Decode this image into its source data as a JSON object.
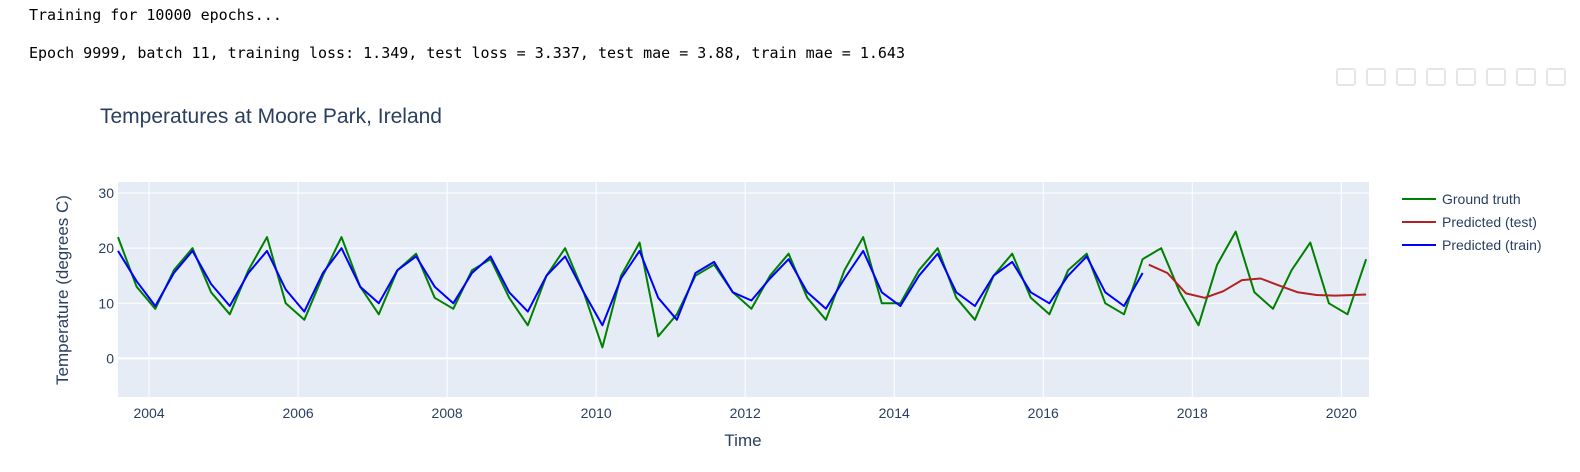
{
  "console": {
    "line1": "Training for 10000 epochs...",
    "line2": "Epoch 9999, batch 11, training loss: 1.349, test loss = 3.337, test mae = 3.88, train mae = 1.643"
  },
  "chart_data": {
    "type": "line",
    "title": "Temperatures at Moore Park, Ireland",
    "xlabel": "Time",
    "ylabel": "Temperature (degrees C)",
    "xlim": [
      "2003-08-01",
      "2020-05-15"
    ],
    "ylim": [
      -7,
      32
    ],
    "x_ticks": [
      "2004",
      "2006",
      "2008",
      "2010",
      "2012",
      "2014",
      "2016",
      "2018",
      "2020"
    ],
    "y_ticks": [
      0,
      10,
      20,
      30
    ],
    "grid": true,
    "legend_position": "right",
    "colors": {
      "ground_truth": "#008000",
      "predicted_test": "#b22222",
      "predicted_train": "#0000ff",
      "plot_bg": "#e5ecf6"
    },
    "series": [
      {
        "name": "Ground truth",
        "x": [
          "2003-08",
          "2003-11",
          "2004-02",
          "2004-05",
          "2004-08",
          "2004-11",
          "2005-02",
          "2005-05",
          "2005-08",
          "2005-11",
          "2006-02",
          "2006-05",
          "2006-08",
          "2006-11",
          "2007-02",
          "2007-05",
          "2007-08",
          "2007-11",
          "2008-02",
          "2008-05",
          "2008-08",
          "2008-11",
          "2009-02",
          "2009-05",
          "2009-08",
          "2009-11",
          "2010-02",
          "2010-05",
          "2010-08",
          "2010-11",
          "2011-02",
          "2011-05",
          "2011-08",
          "2011-11",
          "2012-02",
          "2012-05",
          "2012-08",
          "2012-11",
          "2013-02",
          "2013-05",
          "2013-08",
          "2013-11",
          "2014-02",
          "2014-05",
          "2014-08",
          "2014-11",
          "2015-02",
          "2015-05",
          "2015-08",
          "2015-11",
          "2016-02",
          "2016-05",
          "2016-08",
          "2016-11",
          "2017-02",
          "2017-05",
          "2017-08",
          "2017-11",
          "2018-02",
          "2018-05",
          "2018-08",
          "2018-11",
          "2019-02",
          "2019-05",
          "2019-08",
          "2019-11",
          "2020-02",
          "2020-05"
        ],
        "values": [
          22,
          13,
          9,
          16,
          20,
          12,
          8,
          16,
          22,
          10,
          7,
          15,
          22,
          13,
          8,
          16,
          19,
          11,
          9,
          16,
          18,
          11,
          6,
          15,
          20,
          12,
          2,
          15,
          21,
          4,
          8,
          15,
          17,
          12,
          9,
          15,
          19,
          11,
          7,
          16,
          22,
          10,
          10,
          16,
          20,
          11,
          7,
          15,
          19,
          11,
          8,
          16,
          19,
          10,
          8,
          18,
          20,
          12,
          6,
          17,
          23,
          12,
          9,
          16,
          21,
          10,
          8,
          18
        ]
      },
      {
        "name": "Predicted (test)",
        "x": [
          "2017-06",
          "2017-09",
          "2017-12",
          "2018-03",
          "2018-06",
          "2018-09",
          "2018-12",
          "2019-03",
          "2019-06",
          "2019-09",
          "2019-12",
          "2020-03",
          "2020-05"
        ],
        "values": [
          17.0,
          15.5,
          11.8,
          11.0,
          12.2,
          14.2,
          14.5,
          13.2,
          12.0,
          11.5,
          11.4,
          11.5,
          11.6
        ]
      },
      {
        "name": "Predicted (train)",
        "x": [
          "2003-08",
          "2003-11",
          "2004-02",
          "2004-05",
          "2004-08",
          "2004-11",
          "2005-02",
          "2005-05",
          "2005-08",
          "2005-11",
          "2006-02",
          "2006-05",
          "2006-08",
          "2006-11",
          "2007-02",
          "2007-05",
          "2007-08",
          "2007-11",
          "2008-02",
          "2008-05",
          "2008-08",
          "2008-11",
          "2009-02",
          "2009-05",
          "2009-08",
          "2009-11",
          "2010-02",
          "2010-05",
          "2010-08",
          "2010-11",
          "2011-02",
          "2011-05",
          "2011-08",
          "2011-11",
          "2012-02",
          "2012-05",
          "2012-08",
          "2012-11",
          "2013-02",
          "2013-05",
          "2013-08",
          "2013-11",
          "2014-02",
          "2014-05",
          "2014-08",
          "2014-11",
          "2015-02",
          "2015-05",
          "2015-08",
          "2015-11",
          "2016-02",
          "2016-05",
          "2016-08",
          "2016-11",
          "2017-02",
          "2017-05"
        ],
        "values": [
          19.5,
          14.0,
          9.5,
          15.5,
          19.5,
          13.5,
          9.5,
          15.5,
          19.5,
          12.5,
          8.5,
          15.5,
          20.0,
          13.0,
          10.0,
          16.0,
          18.5,
          13.0,
          10.0,
          15.5,
          18.5,
          12.0,
          8.5,
          15.0,
          18.5,
          12.0,
          6.0,
          14.5,
          19.5,
          11.0,
          7.0,
          15.5,
          17.5,
          12.0,
          10.5,
          14.5,
          18.0,
          12.0,
          9.0,
          14.5,
          19.5,
          12.0,
          9.5,
          15.0,
          19.0,
          12.0,
          9.5,
          15.0,
          17.5,
          12.0,
          10.0,
          15.0,
          18.5,
          12.0,
          9.5,
          15.5
        ]
      }
    ]
  }
}
